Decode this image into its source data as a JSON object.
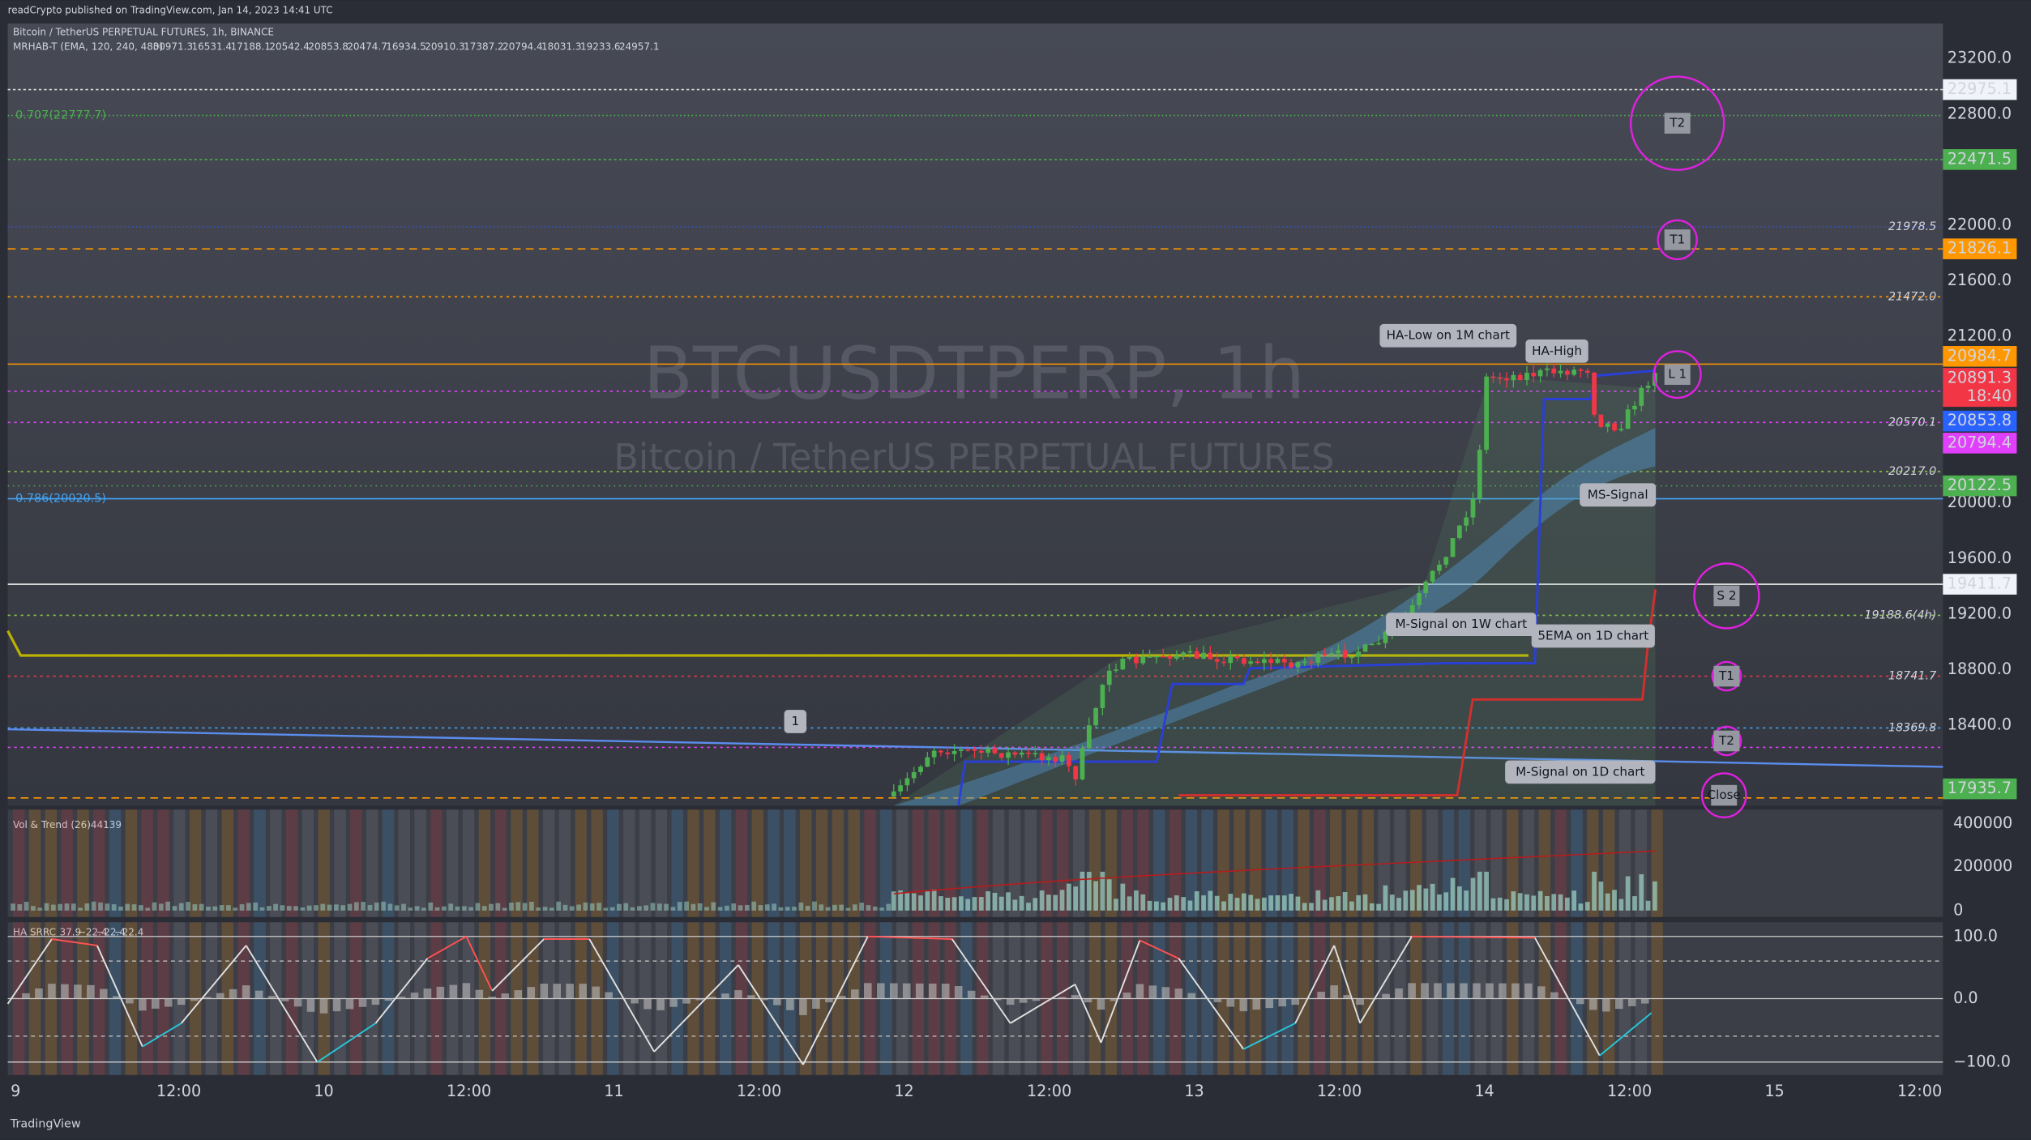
{
  "header": {
    "published": "readCrypto published on TradingView.com, Jan 14, 2023 14:41 UTC",
    "symbol": "Bitcoin / TetherUS PERPETUAL FUTURES, 1h, BINANCE",
    "indicator": "MRHAB-T (EMA, 120, 240, 480)",
    "indicator_values": [
      "30971.3",
      "16531.4",
      "17188.1",
      "20542.4",
      "20853.8",
      "20474.7",
      "16934.5",
      "20910.3",
      "17387.2",
      "20794.4",
      "18031.3",
      "19233.6",
      "24957.1"
    ]
  },
  "watermark": {
    "symbol": "BTCUSDTPERP, 1h",
    "description": "Bitcoin / TetherUS PERPETUAL FUTURES"
  },
  "price_axis": [
    "23200.0",
    "22800.0",
    "22000.0",
    "21600.0",
    "21200.0",
    "20000.0",
    "19600.0",
    "19200.0",
    "18800.0",
    "18400.0"
  ],
  "price_tags": [
    {
      "label": "22975.1"
    },
    {
      "label": "22471.5"
    },
    {
      "label": "21826.1"
    },
    {
      "label": "20984.7"
    },
    {
      "label": "20891.3",
      "countdown": "18:40"
    },
    {
      "label": "20853.8"
    },
    {
      "label": "20794.4"
    },
    {
      "label": "20122.5"
    },
    {
      "label": "19411.7"
    },
    {
      "label": "17935.7"
    }
  ],
  "levels": [
    "21978.5",
    "21472.0",
    "20570.1",
    "20217.0",
    "19188.6(4h)",
    "18741.7",
    "18369.8"
  ],
  "fib": [
    "0.707(22777.7)",
    "0.786(20020.5)"
  ],
  "annotations": [
    "HA-Low on 1M chart",
    "HA-High",
    "MS-Signal",
    "M-Signal on 1W chart",
    "5EMA on 1D chart",
    "M-Signal on 1D chart",
    "1"
  ],
  "targets": [
    "T2",
    "T1",
    "L 1",
    "S 2",
    "T1",
    "T2",
    "Close"
  ],
  "volume_pane": {
    "title": "Vol & Trend (26)",
    "value": "44139",
    "axis": [
      "400000",
      "200000",
      "0"
    ]
  },
  "osc_pane": {
    "title": "HA SRRC",
    "values": [
      "37.9",
      "−22.4",
      "−22.4",
      "−22.4"
    ],
    "axis": [
      "100.0",
      "0.0",
      "−100.0"
    ]
  },
  "time_axis": [
    "9",
    "12:00",
    "10",
    "12:00",
    "11",
    "12:00",
    "12",
    "12:00",
    "13",
    "12:00",
    "14",
    "12:00",
    "15",
    "12:00"
  ],
  "footer": "TradingView"
}
